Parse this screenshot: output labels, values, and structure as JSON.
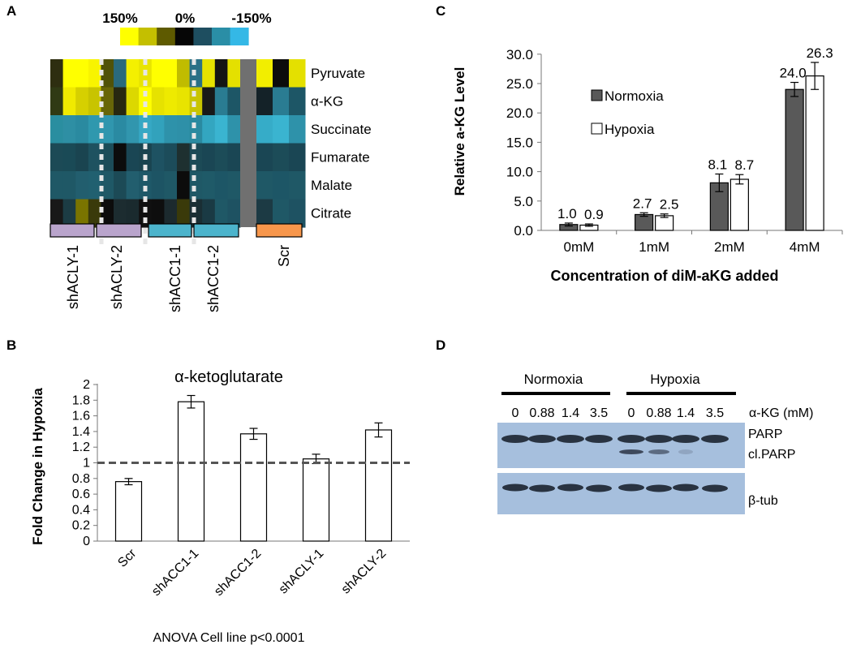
{
  "panels": {
    "a": "A",
    "b": "B",
    "c": "C",
    "d": "D"
  },
  "heatmap": {
    "scale_labels": [
      "150%",
      "0%",
      "-150%"
    ],
    "scale_colors": [
      "#ffff00",
      "#c4bf00",
      "#5e5a00",
      "#060606",
      "#1e4e60",
      "#2a8ea6",
      "#34b8e6"
    ],
    "metabolites": [
      "Pyruvate",
      "α-KG",
      "Succinate",
      "Fumarate",
      "Malate",
      "Citrate"
    ],
    "groups": [
      {
        "label": "shACLY-1",
        "color": "#b9a4cc"
      },
      {
        "label": "shACLY-2",
        "color": "#b9a4cc"
      },
      {
        "label": "shACC1-1",
        "color": "#4cb4cc"
      },
      {
        "label": "shACC1-2",
        "color": "#4cb4cc"
      },
      {
        "label": "Scr",
        "color": "#f7964b"
      }
    ],
    "columns": [
      [
        "#2e2e10",
        "#303a14",
        "#2a8ea0",
        "#1c4a56",
        "#1f5866",
        "#181818"
      ],
      [
        "#ffff00",
        "#f0ea00",
        "#2e8fa4",
        "#1a4a56",
        "#1f5866",
        "#1c3c44"
      ],
      [
        "#ffff00",
        "#d6d000",
        "#2a8aa0",
        "#1a4450",
        "#225e6e",
        "#7a7400"
      ],
      [
        "#f8f400",
        "#c8c400",
        "#2f98ae",
        "#1e5260",
        "#216070",
        "#3a3a0a"
      ],
      [
        "#505208",
        "#686608",
        "#3096ae",
        "#1c4c58",
        "#1f5866",
        "#0c0c0c"
      ],
      [
        "#2a6a7c",
        "#282810",
        "#2a8aa2",
        "#0c0c0c",
        "#1c4a56",
        "#1c2c30"
      ],
      [
        "#f4f000",
        "#dcd800",
        "#3196ae",
        "#1a4654",
        "#225e6e",
        "#1a2a2e"
      ],
      [
        "#e8e400",
        "#ffff00",
        "#36a8c4",
        "#1a4450",
        "#1e5868",
        "#101010"
      ],
      [
        "#ffff00",
        "#e6e200",
        "#32a2bc",
        "#1e5262",
        "#1d5464",
        "#0e0e0e"
      ],
      [
        "#ffff00",
        "#eeea00",
        "#2e92aa",
        "#1c4c5a",
        "#1f5866",
        "#1c2a2e"
      ],
      [
        "#c0bc00",
        "#e8e400",
        "#2e90a8",
        "#1e3030",
        "#0c0c0c",
        "#3a3a0a"
      ],
      [
        "#2a7086",
        "#c8c400",
        "#2a8aa0",
        "#1c4a56",
        "#1f5866",
        "#1a2e34"
      ],
      [
        "#e6e200",
        "#181818",
        "#33a6c0",
        "#1a4654",
        "#1f5a68",
        "#1a3a44"
      ],
      [
        "#141414",
        "#2a7c92",
        "#3ab4d0",
        "#1c4c58",
        "#1d5666",
        "#1f5866"
      ],
      [
        "#e4e000",
        "#1d5666",
        "#2e92aa",
        "#1a4654",
        "#1f5866",
        "#1e5262"
      ]
    ]
  },
  "chart_b": {
    "title": "α-ketoglutarate",
    "ylabel": "Fold Change in  Hypoxia",
    "footnote": "ANOVA Cell line p<0.0001"
  },
  "chart_c": {
    "ylabel": "Relative a-KG Level",
    "xlabel": "Concentration of diM-aKG added",
    "legend": [
      "Normoxia",
      "Hypoxia"
    ]
  },
  "blot": {
    "condition_labels": [
      "Normoxia",
      "Hypoxia"
    ],
    "concentrations": [
      "0",
      "0.88",
      "1.4",
      "3.5",
      "0",
      "0.88",
      "1.4",
      "3.5"
    ],
    "concentration_label": "α-KG (mM)",
    "band_labels": [
      "PARP",
      "cl.PARP",
      "β-tub"
    ],
    "membrane_color": "#a6bfdd"
  },
  "chart_data": [
    {
      "type": "bar",
      "title": "α-ketoglutarate",
      "categories": [
        "Scr",
        "shACC1-1",
        "shACC1-2",
        "shACLY-1",
        "shACLY-2"
      ],
      "values": [
        0.76,
        1.78,
        1.37,
        1.05,
        1.42
      ],
      "errors": [
        0.04,
        0.08,
        0.07,
        0.06,
        0.09
      ],
      "reference_line": 1,
      "xlabel": "",
      "ylabel": "Fold Change in  Hypoxia",
      "ylim": [
        0,
        2
      ],
      "yticks": [
        0,
        0.2,
        0.4,
        0.6,
        0.8,
        1,
        1.2,
        1.4,
        1.6,
        1.8,
        2
      ],
      "ytick_labels": [
        "0",
        "0.2",
        "0.4",
        "0.6",
        "0.8",
        "1",
        "1.2",
        "1.4",
        "1.6",
        "1.8",
        "2"
      ],
      "grid": false,
      "legend": false
    },
    {
      "type": "bar",
      "categories": [
        "0mM",
        "1mM",
        "2mM",
        "4mM"
      ],
      "series": [
        {
          "name": "Normoxia",
          "values": [
            1.0,
            2.7,
            8.1,
            24.0
          ],
          "errors": [
            0.25,
            0.3,
            1.5,
            1.2
          ],
          "labels": [
            "1.0",
            "2.7",
            "8.1",
            "24.0"
          ],
          "color": "#595959"
        },
        {
          "name": "Hypoxia",
          "values": [
            0.9,
            2.5,
            8.7,
            26.3
          ],
          "errors": [
            0.2,
            0.3,
            0.8,
            2.3
          ],
          "labels": [
            "0.9",
            "2.5",
            "8.7",
            "26.3"
          ],
          "color": "#ffffff"
        }
      ],
      "xlabel": "Concentration of diM-aKG added",
      "ylabel": "Relative a-KG Level",
      "ylim": [
        0,
        30
      ],
      "yticks": [
        0,
        5,
        10,
        15,
        20,
        25,
        30
      ],
      "ytick_labels": [
        "0.0",
        "5.0",
        "10.0",
        "15.0",
        "20.0",
        "25.0",
        "30.0"
      ],
      "grid": false,
      "legend_position": "upper-left"
    }
  ]
}
